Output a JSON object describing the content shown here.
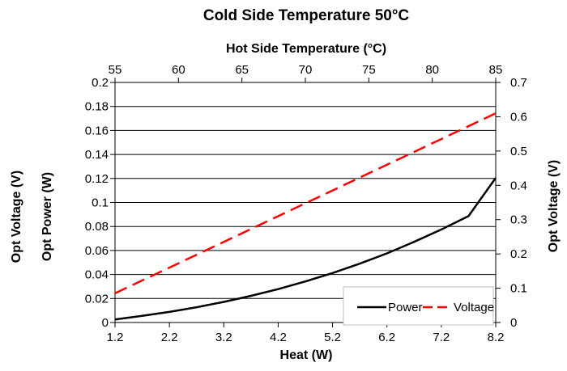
{
  "chart_data": {
    "type": "line",
    "title": "Cold Side Temperature 50°C",
    "top_axis": {
      "label": "Hot Side Temperature (°C)",
      "ticks": [
        "55",
        "60",
        "65",
        "70",
        "75",
        "80",
        "85"
      ],
      "range": [
        55,
        85
      ]
    },
    "x_axis": {
      "label": "Heat (W)",
      "ticks": [
        "1.2",
        "2.2",
        "3.2",
        "4.2",
        "5.2",
        "6.2",
        "7.2",
        "8.2"
      ],
      "range": [
        1.2,
        8.2
      ]
    },
    "y_left": {
      "label_outer": "Opt Voltage (V)",
      "label_inner": "Opt Power (W)",
      "ticks": [
        "0",
        "0.02",
        "0.04",
        "0.06",
        "0.08",
        "0.1",
        "0.12",
        "0.14",
        "0.16",
        "0.18",
        "0.2"
      ],
      "range": [
        0,
        0.2
      ]
    },
    "y_right": {
      "label": "Opt Voltage (V)",
      "ticks": [
        "0",
        "0.1",
        "0.2",
        "0.3",
        "0.4",
        "0.5",
        "0.6",
        "0.7"
      ],
      "range": [
        0,
        0.7
      ]
    },
    "grid": "horizontal",
    "legend_position": "bottom-right",
    "series": [
      {
        "name": "Power",
        "axis": "left",
        "color": "#000000",
        "dash": "solid",
        "x": [
          1.2,
          1.7,
          2.2,
          2.7,
          3.2,
          3.7,
          4.2,
          4.7,
          5.2,
          5.7,
          6.2,
          6.7,
          7.2,
          7.7,
          8.2
        ],
        "y": [
          0.0025,
          0.0055,
          0.0088,
          0.0127,
          0.0172,
          0.0222,
          0.0278,
          0.0342,
          0.0412,
          0.049,
          0.0576,
          0.0672,
          0.0775,
          0.0886,
          0.1205
        ]
      },
      {
        "name": "Voltage",
        "axis": "right",
        "color": "#ff0000",
        "dash": "dashed",
        "x": [
          1.2,
          8.2
        ],
        "y": [
          0.085,
          0.61
        ]
      }
    ]
  }
}
